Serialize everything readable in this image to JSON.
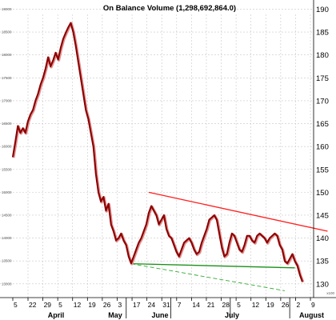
{
  "chart_data": {
    "type": "line",
    "title": "On Balance Volume (1,298,692,864.0)",
    "scale_note": "x100",
    "right_axis": {
      "ylim": [
        127,
        192
      ],
      "ticks": [
        "130",
        "135",
        "140",
        "145",
        "150",
        "155",
        "160",
        "165",
        "170",
        "175",
        "180",
        "185",
        "190"
      ]
    },
    "left_axis": {
      "ticks": [
        "13000",
        "13500",
        "14000",
        "14500",
        "15000",
        "15500",
        "16000",
        "16500",
        "17000",
        "17500",
        "18000",
        "18500",
        "19000"
      ]
    },
    "x_ticks": [
      "5",
      "22",
      "29",
      "5",
      "12",
      "19",
      "26",
      "3",
      "17",
      "24",
      "31",
      "7",
      "14",
      "21",
      "28",
      "5",
      "12",
      "19",
      "26",
      "2",
      "9"
    ],
    "months": [
      "April",
      "May",
      "June",
      "July",
      "August"
    ],
    "grid": true,
    "series": [
      {
        "values": [
          157.7,
          161,
          164.5,
          163,
          164,
          163,
          165.5,
          167,
          168,
          170,
          171.5,
          173.5,
          175,
          177,
          179.5,
          177.5,
          178.8,
          180.5,
          179,
          181.5,
          183.5,
          184.8,
          186,
          187,
          185,
          182,
          178.5,
          175,
          171.5,
          168,
          166,
          163,
          160,
          154,
          150,
          148,
          149,
          146,
          147.5,
          143,
          141.5,
          139.5,
          140,
          141,
          139.5,
          138.5,
          136,
          134.5,
          136,
          137.5,
          139,
          140,
          141.5,
          143,
          145.5,
          147,
          146,
          145,
          143,
          144,
          145,
          142,
          140.5,
          140,
          138.5,
          137,
          136,
          137.5,
          139,
          139.5,
          140,
          139,
          137.5,
          136.5,
          137,
          139,
          140.5,
          142,
          144,
          144.5,
          145,
          144,
          141,
          138,
          136,
          136.5,
          139,
          141,
          140.5,
          139,
          137.5,
          137,
          138.5,
          140.5,
          140.5,
          139.5,
          139,
          140.5,
          141,
          140.5,
          140,
          139,
          140,
          140.5,
          141,
          140.5,
          138.5,
          137.5,
          135,
          134.5,
          135.5,
          136.5,
          135,
          134,
          132,
          130.5
        ]
      }
    ],
    "trendlines": [
      {
        "color": "#ff2020",
        "style": "solid",
        "from": [
          54,
          150
        ],
        "to": [
          125,
          141.5
        ]
      },
      {
        "color": "#1a8f1a",
        "style": "solid",
        "from": [
          47,
          134.4
        ],
        "to": [
          112,
          133.5
        ]
      },
      {
        "color": "#33aa33",
        "style": "dashed",
        "from": [
          47,
          134.4
        ],
        "to": [
          108,
          128.5
        ]
      }
    ],
    "colors": {
      "line": "#8b0000",
      "line_shadow": "#e09090"
    }
  }
}
